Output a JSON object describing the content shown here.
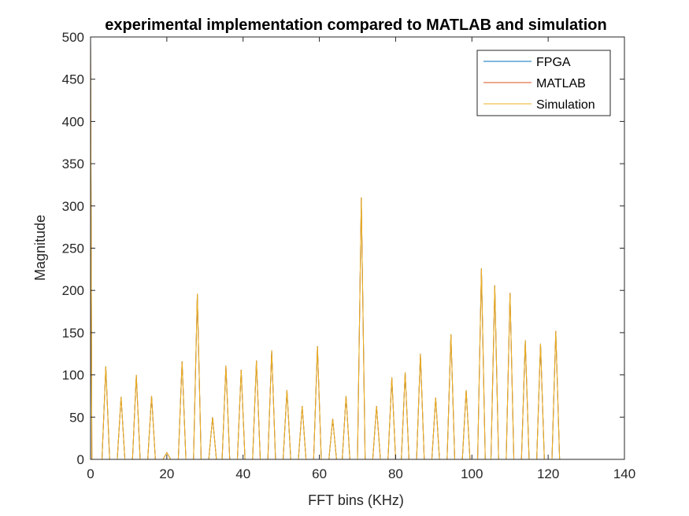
{
  "chart_data": {
    "type": "line",
    "title": "experimental implementation compared to MATLAB and simulation",
    "xlabel": "FFT bins (KHz)",
    "ylabel": "Magnitude",
    "xlim": [
      0,
      140
    ],
    "ylim": [
      0,
      500
    ],
    "xticks": [
      0,
      20,
      40,
      60,
      80,
      100,
      120,
      140
    ],
    "yticks": [
      0,
      50,
      100,
      150,
      200,
      250,
      300,
      350,
      400,
      450,
      500
    ],
    "legend_position": "top-right",
    "grid": false,
    "spike_x": [
      4,
      8,
      12,
      16,
      20,
      24,
      28,
      32,
      35.5,
      39.5,
      43.5,
      47.5,
      51.5,
      55.5,
      59.5,
      63.5,
      67,
      71,
      75,
      79,
      82.5,
      86.5,
      90.5,
      94.5,
      98.5,
      102.5,
      106,
      110,
      114,
      118,
      122
    ],
    "spike_y": [
      110,
      74,
      100,
      75,
      8,
      116,
      196,
      50,
      111,
      106,
      117,
      129,
      82,
      63,
      134,
      48,
      75,
      310,
      63,
      97,
      103,
      125,
      73,
      148,
      82,
      226,
      206,
      197,
      141,
      137,
      152
    ],
    "series": [
      {
        "name": "FPGA",
        "color": "#0072BD",
        "start_value": 500,
        "end_x": 125
      },
      {
        "name": "MATLAB",
        "color": "#D95319",
        "start_value": 500,
        "end_x": 125
      },
      {
        "name": "Simulation",
        "color": "#EDB120",
        "start_value": 500,
        "end_x": 125
      }
    ]
  }
}
